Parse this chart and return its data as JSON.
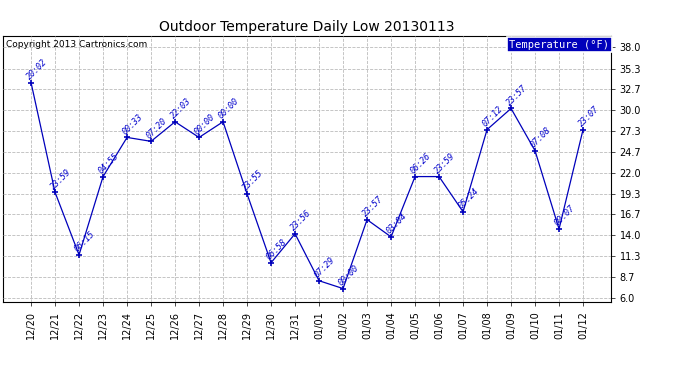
{
  "title": "Outdoor Temperature Daily Low 20130113",
  "copyright": "Copyright 2013 Cartronics.com",
  "legend_label": "Temperature (°F)",
  "x_labels": [
    "12/20",
    "12/21",
    "12/22",
    "12/23",
    "12/24",
    "12/25",
    "12/26",
    "12/27",
    "12/28",
    "12/29",
    "12/30",
    "12/31",
    "01/01",
    "01/02",
    "01/03",
    "01/04",
    "01/05",
    "01/06",
    "01/07",
    "01/08",
    "01/09",
    "01/10",
    "01/11",
    "01/12"
  ],
  "y_values": [
    33.5,
    19.5,
    11.5,
    21.5,
    26.5,
    26.0,
    28.5,
    26.5,
    28.5,
    19.3,
    10.5,
    14.2,
    8.2,
    7.2,
    16.0,
    13.8,
    21.5,
    21.5,
    17.0,
    27.5,
    30.2,
    24.8,
    14.8,
    27.5
  ],
  "point_labels": [
    "20:02",
    "23:59",
    "06:15",
    "04:55",
    "00:33",
    "07:20",
    "22:03",
    "00:00",
    "00:00",
    "23:55",
    "06:58",
    "23:56",
    "07:29",
    "00:00",
    "23:57",
    "03:04",
    "06:26",
    "23:59",
    "05:24",
    "07:12",
    "23:57",
    "07:08",
    "00:07",
    "23:07"
  ],
  "ylim_low": 5.5,
  "ylim_high": 39.5,
  "yticks": [
    6.0,
    8.7,
    11.3,
    14.0,
    16.7,
    19.3,
    22.0,
    24.7,
    27.3,
    30.0,
    32.7,
    35.3,
    38.0
  ],
  "line_color": "#0000bb",
  "marker_symbol": "+",
  "label_color": "#0000cc",
  "grid_color": "#bbbbbb",
  "bg_color": "#ffffff",
  "legend_bg": "#0000bb",
  "legend_fg": "#ffffff",
  "title_fontsize": 10,
  "tick_fontsize": 7,
  "point_label_fontsize": 6,
  "copyright_fontsize": 6.5
}
